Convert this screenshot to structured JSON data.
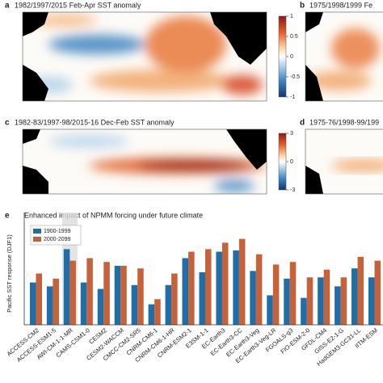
{
  "maps": [
    {
      "label": "a",
      "title": "1982/1997/2015  Feb-Apr SST anomaly",
      "colorbar": {
        "lim": [
          -1,
          1
        ],
        "ticks": [
          1,
          0.5,
          0,
          -0.5,
          -1
        ]
      }
    },
    {
      "label": "b",
      "title": "1975/1998/1999  Fe"
    },
    {
      "label": "c",
      "title": "1982-83/1997-98/2015-16  Dec-Feb SST anomaly",
      "colorbar": {
        "lim": [
          -3,
          3
        ],
        "ticks": [
          3,
          0,
          -3
        ]
      }
    },
    {
      "label": "d",
      "title": "1975-76/1998-99/199"
    }
  ],
  "chart_data": {
    "type": "bar",
    "label": "e",
    "title": "Enhanced impact of NPMM forcing under future climate",
    "ylabel": "Pacific SST response (DJF1)",
    "categories": [
      "ACCESS-CM2",
      "ACCESS-ESM1-5",
      "AWI-CM-1-1-MR",
      "CAMS-CSM1-0",
      "CESM2",
      "CESM2-WACCM",
      "CMCC-CM2-SR5",
      "CNRM-CM6-1",
      "CNRM-CM6-1-HR",
      "CNRM-ESM2-1",
      "E3SM-1-1",
      "EC-Earth3",
      "EC-Earth3-CC",
      "EC-Earth3-Veg",
      "EC-Earth3-Veg-LR",
      "FGOALS-g3",
      "FIO-ESM-2-0",
      "GFDL-CM4",
      "GISS-E2-1-G",
      "HadGEM3-GC31-LL",
      "IITM-ESM"
    ],
    "series": [
      {
        "name": "1900-1999",
        "color": "#1f6ea8",
        "values": [
          0.33,
          0.3,
          0.59,
          0.33,
          0.28,
          0.46,
          0.31,
          0.16,
          0.31,
          0.52,
          0.41,
          0.57,
          0.58,
          0.42,
          0.23,
          0.36,
          0.21,
          0.37,
          0.3,
          0.44,
          0.37
        ]
      },
      {
        "name": "2000-2099",
        "color": "#c6623a",
        "values": [
          0.4,
          0.36,
          0.5,
          0.52,
          0.49,
          0.46,
          0.44,
          0.2,
          0.4,
          0.57,
          0.59,
          0.64,
          0.67,
          0.55,
          0.47,
          0.49,
          0.37,
          0.43,
          0.37,
          0.53,
          0.5
        ]
      }
    ],
    "ylim": [
      0,
      0.8
    ],
    "highlight_index": 2,
    "legend": "upper left"
  }
}
